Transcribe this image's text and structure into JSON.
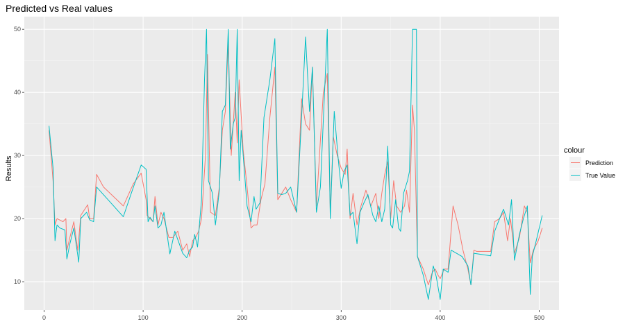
{
  "chart_data": {
    "type": "line",
    "title": "Predicted vs Real values",
    "xlabel": "",
    "ylabel": "Results",
    "xlim": [
      -20,
      520
    ],
    "ylim": [
      5.5,
      52
    ],
    "x_ticks": [
      0,
      100,
      200,
      300,
      400,
      500
    ],
    "y_ticks": [
      10,
      20,
      30,
      40,
      50
    ],
    "x_tick_labels": [
      "0",
      "100",
      "200",
      "300",
      "400",
      "500"
    ],
    "y_tick_labels": [
      "10",
      "20",
      "30",
      "40",
      "50"
    ],
    "grid": true,
    "legend": {
      "title": "colour",
      "placement": "right"
    },
    "series": [
      {
        "name": "Prediction",
        "color": "#F8766D",
        "points": [
          [
            5,
            34
          ],
          [
            9,
            26
          ],
          [
            11,
            19
          ],
          [
            13,
            20
          ],
          [
            19,
            19.5
          ],
          [
            22,
            20
          ],
          [
            23,
            15
          ],
          [
            26,
            17
          ],
          [
            30,
            19.5
          ],
          [
            34,
            15
          ],
          [
            37,
            20.5
          ],
          [
            44,
            22.2
          ],
          [
            46,
            20
          ],
          [
            50,
            20
          ],
          [
            53,
            27
          ],
          [
            60,
            25
          ],
          [
            80,
            22
          ],
          [
            90,
            25.5
          ],
          [
            98,
            27.2
          ],
          [
            103,
            23
          ],
          [
            104,
            20.5
          ],
          [
            107,
            20
          ],
          [
            110,
            19.5
          ],
          [
            112,
            23.5
          ],
          [
            115,
            19
          ],
          [
            118,
            21
          ],
          [
            121,
            20
          ],
          [
            126,
            17
          ],
          [
            130,
            17
          ],
          [
            135,
            18
          ],
          [
            140,
            15
          ],
          [
            144,
            16
          ],
          [
            147,
            14
          ],
          [
            150,
            16.5
          ],
          [
            153,
            17
          ],
          [
            156,
            18
          ],
          [
            159,
            20
          ],
          [
            163,
            30
          ],
          [
            165,
            46
          ],
          [
            168,
            21
          ],
          [
            173,
            20.5
          ],
          [
            177,
            25
          ],
          [
            180,
            34
          ],
          [
            183,
            37
          ],
          [
            186,
            48
          ],
          [
            189,
            30
          ],
          [
            193,
            40
          ],
          [
            195,
            32
          ],
          [
            197,
            42
          ],
          [
            201,
            31
          ],
          [
            205,
            25
          ],
          [
            209,
            18.5
          ],
          [
            212,
            19
          ],
          [
            215,
            19
          ],
          [
            219,
            23
          ],
          [
            223,
            25.5
          ],
          [
            228,
            36
          ],
          [
            233,
            44
          ],
          [
            236,
            23
          ],
          [
            240,
            24
          ],
          [
            244,
            25
          ],
          [
            249,
            23
          ],
          [
            252,
            22
          ],
          [
            255,
            21
          ],
          [
            260,
            39
          ],
          [
            264,
            35
          ],
          [
            268,
            34
          ],
          [
            271,
            44
          ],
          [
            275,
            22
          ],
          [
            282,
            40
          ],
          [
            286,
            43
          ],
          [
            289,
            21
          ],
          [
            292,
            33
          ],
          [
            296,
            30
          ],
          [
            300,
            28
          ],
          [
            304,
            27
          ],
          [
            306,
            31
          ],
          [
            309,
            20
          ],
          [
            312,
            24
          ],
          [
            316,
            19
          ],
          [
            320,
            22
          ],
          [
            325,
            24.5
          ],
          [
            330,
            22
          ],
          [
            335,
            24
          ],
          [
            338,
            20
          ],
          [
            341,
            24
          ],
          [
            344,
            27
          ],
          [
            347,
            29
          ],
          [
            350,
            20
          ],
          [
            353,
            26
          ],
          [
            356,
            22
          ],
          [
            360,
            21
          ],
          [
            364,
            22
          ],
          [
            366,
            24.5
          ],
          [
            369,
            21
          ],
          [
            372,
            38
          ],
          [
            374,
            34
          ],
          [
            377,
            14
          ],
          [
            380,
            13
          ],
          [
            383,
            12
          ],
          [
            388,
            9.5
          ],
          [
            392,
            11.5
          ],
          [
            395,
            12
          ],
          [
            398,
            11
          ],
          [
            400,
            10.5
          ],
          [
            404,
            12
          ],
          [
            408,
            12
          ],
          [
            413,
            22
          ],
          [
            418,
            19
          ],
          [
            423,
            15
          ],
          [
            428,
            12
          ],
          [
            431,
            9.5
          ],
          [
            434,
            15
          ],
          [
            437,
            14.8
          ],
          [
            442,
            14.8
          ],
          [
            446,
            14.8
          ],
          [
            451,
            14.8
          ],
          [
            455,
            19.5
          ],
          [
            460,
            20
          ],
          [
            464,
            21
          ],
          [
            468,
            16.5
          ],
          [
            471,
            20
          ],
          [
            475,
            14.5
          ],
          [
            480,
            17
          ],
          [
            485,
            22
          ],
          [
            488,
            21
          ],
          [
            491,
            13
          ],
          [
            494,
            15
          ],
          [
            499,
            16.5
          ],
          [
            503,
            18.5
          ]
        ]
      },
      {
        "name": "True Value",
        "color": "#00BFC4",
        "points": [
          [
            5,
            34.7
          ],
          [
            9,
            28
          ],
          [
            11,
            16.5
          ],
          [
            13,
            19
          ],
          [
            16,
            18.5
          ],
          [
            21,
            18.2
          ],
          [
            23,
            13.6
          ],
          [
            26,
            16
          ],
          [
            30,
            18.5
          ],
          [
            35,
            13.1
          ],
          [
            37,
            20
          ],
          [
            43,
            21
          ],
          [
            46,
            19.8
          ],
          [
            50,
            19.5
          ],
          [
            53,
            25
          ],
          [
            80,
            20.3
          ],
          [
            88,
            24
          ],
          [
            98,
            28.5
          ],
          [
            103,
            27.8
          ],
          [
            105,
            19.5
          ],
          [
            107,
            20.2
          ],
          [
            110,
            19.5
          ],
          [
            112,
            22
          ],
          [
            115,
            18.5
          ],
          [
            118,
            19
          ],
          [
            121,
            21
          ],
          [
            127,
            14.4
          ],
          [
            132,
            18
          ],
          [
            140,
            14.5
          ],
          [
            144,
            13.8
          ],
          [
            147,
            15
          ],
          [
            150,
            15.5
          ],
          [
            152,
            17.5
          ],
          [
            155,
            15.5
          ],
          [
            159,
            23
          ],
          [
            162,
            42
          ],
          [
            164,
            50
          ],
          [
            166,
            26
          ],
          [
            170,
            24
          ],
          [
            173,
            19
          ],
          [
            177,
            24.5
          ],
          [
            180,
            37
          ],
          [
            183,
            38
          ],
          [
            186,
            50
          ],
          [
            188,
            31
          ],
          [
            191,
            35
          ],
          [
            193,
            36
          ],
          [
            195,
            50
          ],
          [
            197,
            26
          ],
          [
            199,
            34
          ],
          [
            202,
            28
          ],
          [
            205,
            22
          ],
          [
            209,
            19.5
          ],
          [
            212,
            23.5
          ],
          [
            214,
            21.5
          ],
          [
            218,
            22.5
          ],
          [
            222,
            36
          ],
          [
            228,
            42
          ],
          [
            233,
            48.5
          ],
          [
            236,
            24
          ],
          [
            240,
            23.8
          ],
          [
            244,
            24
          ],
          [
            249,
            25
          ],
          [
            255,
            21
          ],
          [
            260,
            36
          ],
          [
            264,
            48.8
          ],
          [
            268,
            37
          ],
          [
            271,
            44
          ],
          [
            275,
            21
          ],
          [
            279,
            25
          ],
          [
            286,
            50
          ],
          [
            289,
            20
          ],
          [
            293,
            37
          ],
          [
            297,
            29.5
          ],
          [
            300,
            24.8
          ],
          [
            303,
            27.5
          ],
          [
            306,
            28.5
          ],
          [
            309,
            20.5
          ],
          [
            312,
            21
          ],
          [
            316,
            16
          ],
          [
            319,
            21
          ],
          [
            323,
            22.5
          ],
          [
            327,
            23.8
          ],
          [
            332,
            20.5
          ],
          [
            335,
            19.5
          ],
          [
            338,
            22
          ],
          [
            341,
            19.5
          ],
          [
            344,
            21.5
          ],
          [
            347,
            31.5
          ],
          [
            350,
            19
          ],
          [
            352,
            18.5
          ],
          [
            355,
            23
          ],
          [
            358,
            18.5
          ],
          [
            360,
            18
          ],
          [
            363,
            24
          ],
          [
            367,
            26
          ],
          [
            369,
            27.5
          ],
          [
            372,
            50
          ],
          [
            374,
            50
          ],
          [
            376,
            50
          ],
          [
            377,
            14
          ],
          [
            380,
            12.5
          ],
          [
            383,
            11
          ],
          [
            388,
            7.2
          ],
          [
            393,
            12.5
          ],
          [
            396,
            10.8
          ],
          [
            400,
            7.2
          ],
          [
            403,
            12
          ],
          [
            408,
            11.5
          ],
          [
            411,
            15
          ],
          [
            422,
            14
          ],
          [
            428,
            12.5
          ],
          [
            431,
            9.5
          ],
          [
            434,
            14.5
          ],
          [
            451,
            14.1
          ],
          [
            455,
            18
          ],
          [
            460,
            20
          ],
          [
            464,
            21.5
          ],
          [
            469,
            19
          ],
          [
            472,
            23
          ],
          [
            475,
            13.4
          ],
          [
            480,
            17.5
          ],
          [
            484,
            20
          ],
          [
            488,
            22
          ],
          [
            491,
            8
          ],
          [
            493,
            14
          ],
          [
            497,
            16.5
          ],
          [
            503,
            20.5
          ]
        ]
      }
    ]
  }
}
